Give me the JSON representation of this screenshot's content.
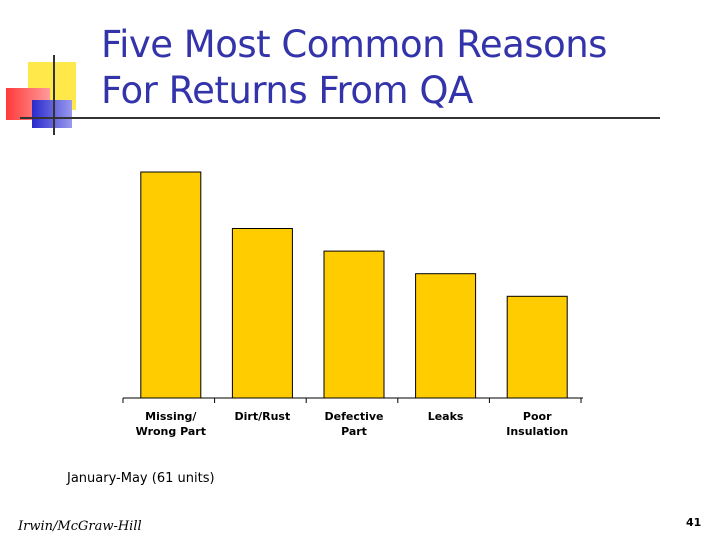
{
  "slide": {
    "title_line1": "Five Most Common Reasons",
    "title_line2": "For Returns From QA",
    "footnote": "January-May (61 units)",
    "credit": "Irwin/McGraw-Hill",
    "page_number": "41"
  },
  "colors": {
    "bar": "#FFCC00",
    "title": "#3333AA"
  },
  "chart_data": {
    "type": "bar",
    "categories": [
      [
        "Missing/",
        "Wrong Part"
      ],
      [
        "Dirt/Rust"
      ],
      [
        "Defective",
        "Part"
      ],
      [
        "Leaks"
      ],
      [
        "Poor",
        "Insulation"
      ]
    ],
    "values": [
      20,
      15,
      13,
      11,
      9
    ],
    "ylim": [
      0,
      20
    ],
    "grid": false,
    "title": "",
    "xlabel": "",
    "ylabel": ""
  }
}
